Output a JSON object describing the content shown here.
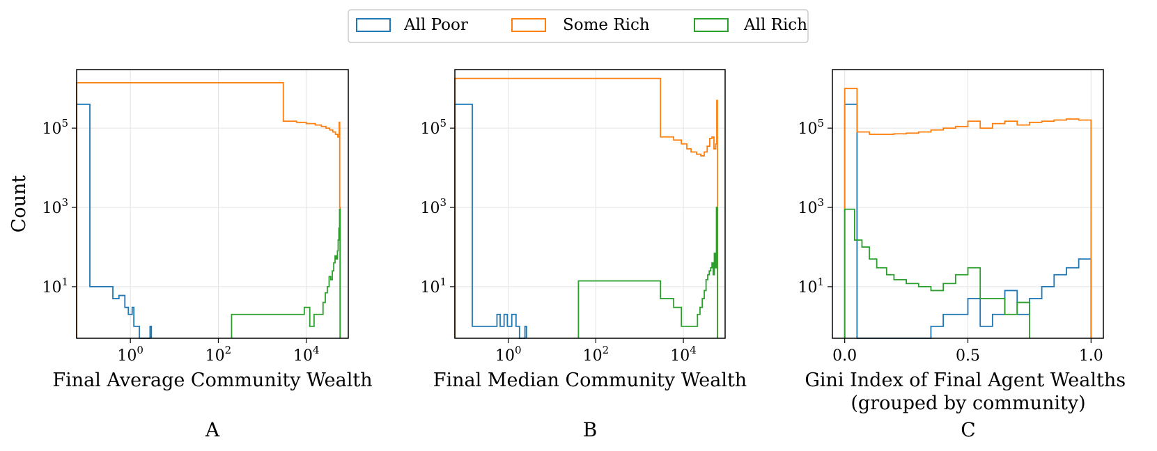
{
  "legend": {
    "placement": "top-center",
    "entries": [
      {
        "label": "All Poor",
        "color": "#1f77b4"
      },
      {
        "label": "Some Rich",
        "color": "#ff7f0e"
      },
      {
        "label": "All Rich",
        "color": "#2ca02c"
      }
    ]
  },
  "chart_data": [
    {
      "type": "histogram",
      "panel_label": "A",
      "xlabel": "Final Average Community Wealth",
      "ylabel": "Count",
      "xscale": "log",
      "yscale": "log",
      "xlim": [
        0.06,
        90000
      ],
      "ylim": [
        0.5,
        3000000
      ],
      "grid": true,
      "x_ticks": [
        {
          "value": 1,
          "label": "10^0"
        },
        {
          "value": 100,
          "label": "10^2"
        },
        {
          "value": 10000,
          "label": "10^4"
        }
      ],
      "y_ticks": [
        {
          "value": 10,
          "label": "10^1"
        },
        {
          "value": 1000,
          "label": "10^3"
        },
        {
          "value": 100000,
          "label": "10^5"
        }
      ],
      "series": [
        {
          "name": "All Poor",
          "color": "#1f77b4",
          "edges": [
            0.06,
            0.12,
            0.25,
            0.4,
            0.55,
            0.75,
            0.9,
            1.1,
            1.2,
            1.35,
            1.6,
            2.8,
            3.0
          ],
          "counts": [
            400000,
            10,
            10,
            5,
            6,
            3,
            2,
            3,
            1,
            1,
            0,
            1
          ]
        },
        {
          "name": "Some Rich",
          "color": "#ff7f0e",
          "edges": [
            0.06,
            3000,
            6000,
            10000,
            16000,
            22000,
            28000,
            34000,
            40000,
            46000,
            52000,
            56000,
            57500,
            59000
          ],
          "counts": [
            1400000,
            150000,
            140000,
            130000,
            120000,
            110000,
            100000,
            90000,
            80000,
            70000,
            60000,
            140000,
            1000
          ]
        },
        {
          "name": "All Rich",
          "color": "#2ca02c",
          "edges": [
            200,
            9000,
            12000,
            15000,
            20000,
            24000,
            27000,
            30000,
            33000,
            36000,
            39000,
            42000,
            45000,
            48000,
            51000,
            53000,
            55000,
            57000,
            58500
          ],
          "counts": [
            2,
            3,
            1,
            2,
            2,
            4,
            7,
            10,
            18,
            15,
            25,
            40,
            60,
            50,
            80,
            150,
            300,
            900
          ]
        }
      ]
    },
    {
      "type": "histogram",
      "panel_label": "B",
      "xlabel": "Final Median Community Wealth",
      "xscale": "log",
      "yscale": "log",
      "xlim": [
        0.06,
        90000
      ],
      "ylim": [
        0.5,
        3000000
      ],
      "grid": true,
      "x_ticks": [
        {
          "value": 1,
          "label": "10^0"
        },
        {
          "value": 100,
          "label": "10^2"
        },
        {
          "value": 10000,
          "label": "10^4"
        }
      ],
      "y_ticks": [
        {
          "value": 10,
          "label": "10^1"
        },
        {
          "value": 1000,
          "label": "10^3"
        },
        {
          "value": 100000,
          "label": "10^5"
        }
      ],
      "series": [
        {
          "name": "All Poor",
          "color": "#1f77b4",
          "edges": [
            0.06,
            0.15,
            0.3,
            0.55,
            0.65,
            0.8,
            0.95,
            1.2,
            1.5,
            1.8,
            2.4,
            2.6
          ],
          "counts": [
            400000,
            1,
            1,
            2,
            1,
            2,
            1,
            2,
            1,
            0,
            1
          ]
        },
        {
          "name": "Some Rich",
          "color": "#ff7f0e",
          "edges": [
            0.06,
            3000,
            6000,
            9000,
            12000,
            15000,
            20000,
            25000,
            30000,
            35000,
            40000,
            45000,
            50000,
            55000,
            58000,
            60000
          ],
          "counts": [
            1800000,
            60000,
            50000,
            40000,
            30000,
            25000,
            22000,
            20000,
            25000,
            35000,
            55000,
            60000,
            30000,
            40000,
            500000
          ]
        },
        {
          "name": "All Rich",
          "color": "#2ca02c",
          "edges": [
            40,
            3000,
            6000,
            9000,
            12000,
            15000,
            18000,
            21000,
            24000,
            27000,
            30000,
            33000,
            36000,
            39000,
            42000,
            45000,
            48000,
            51000,
            54000,
            57000,
            60000
          ],
          "counts": [
            14,
            5,
            3,
            1,
            1,
            1,
            1,
            2,
            3,
            5,
            8,
            15,
            20,
            25,
            30,
            40,
            20,
            70,
            30,
            1000
          ]
        }
      ]
    },
    {
      "type": "histogram",
      "panel_label": "C",
      "xlabel": "Gini Index of Final Agent Wealths\n(grouped by community)",
      "xscale": "linear",
      "yscale": "log",
      "xlim": [
        -0.05,
        1.05
      ],
      "ylim": [
        0.5,
        3000000
      ],
      "grid": true,
      "x_ticks": [
        {
          "value": 0.0,
          "label": "0.0"
        },
        {
          "value": 0.5,
          "label": "0.5"
        },
        {
          "value": 1.0,
          "label": "1.0"
        }
      ],
      "y_ticks": [
        {
          "value": 10,
          "label": "10^1"
        },
        {
          "value": 1000,
          "label": "10^3"
        },
        {
          "value": 100000,
          "label": "10^5"
        }
      ],
      "series": [
        {
          "name": "All Poor",
          "color": "#1f77b4",
          "edges": [
            0.0,
            0.05,
            0.1,
            0.15,
            0.2,
            0.25,
            0.3,
            0.35,
            0.4,
            0.45,
            0.5,
            0.55,
            0.6,
            0.65,
            0.7,
            0.75,
            0.8,
            0.85,
            0.9,
            0.95,
            1.0
          ],
          "counts": [
            400000,
            0,
            0,
            0,
            0,
            0,
            0,
            1,
            2,
            2,
            5,
            1,
            2,
            8,
            2,
            5,
            10,
            20,
            30,
            50
          ]
        },
        {
          "name": "Some Rich",
          "color": "#ff7f0e",
          "edges": [
            0.0,
            0.05,
            0.1,
            0.15,
            0.2,
            0.25,
            0.3,
            0.35,
            0.4,
            0.45,
            0.5,
            0.55,
            0.6,
            0.65,
            0.7,
            0.75,
            0.8,
            0.85,
            0.9,
            0.95,
            1.0
          ],
          "counts": [
            1000000,
            80000,
            70000,
            70000,
            72000,
            75000,
            80000,
            90000,
            100000,
            110000,
            150000,
            100000,
            130000,
            150000,
            120000,
            140000,
            150000,
            160000,
            170000,
            160000
          ]
        },
        {
          "name": "All Rich",
          "color": "#2ca02c",
          "edges": [
            0.0,
            0.04,
            0.07,
            0.1,
            0.13,
            0.17,
            0.2,
            0.25,
            0.3,
            0.35,
            0.4,
            0.45,
            0.5,
            0.55,
            0.6,
            0.65,
            0.7,
            0.75
          ],
          "counts": [
            900,
            150,
            100,
            50,
            30,
            20,
            15,
            12,
            10,
            8,
            12,
            20,
            30,
            5,
            5,
            2,
            4
          ]
        }
      ]
    }
  ]
}
